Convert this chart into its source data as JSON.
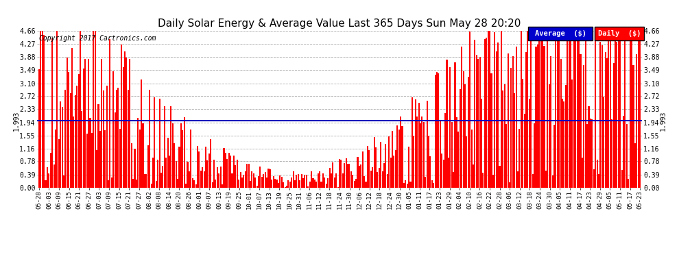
{
  "title": "Daily Solar Energy & Average Value Last 365 Days Sun May 28 20:20",
  "average_value": 1.993,
  "y_max": 4.66,
  "y_ticks": [
    0.0,
    0.39,
    0.78,
    1.16,
    1.55,
    1.94,
    2.33,
    2.72,
    3.1,
    3.49,
    3.88,
    4.27,
    4.66
  ],
  "bar_color": "#FF0000",
  "average_line_color": "#0000BB",
  "background_color": "#FFFFFF",
  "grid_color": "#AAAAAA",
  "copyright_text": "Copyright 2017 Cartronics.com",
  "legend_avg_label": "Average  ($)",
  "legend_daily_label": "Daily  ($)",
  "legend_avg_bg": "#0000CC",
  "legend_daily_bg": "#FF0000",
  "x_labels": [
    "05-28",
    "06-03",
    "06-09",
    "06-15",
    "06-21",
    "06-27",
    "07-03",
    "07-09",
    "07-15",
    "07-21",
    "07-27",
    "08-02",
    "08-08",
    "08-14",
    "08-20",
    "08-26",
    "09-01",
    "09-07",
    "09-13",
    "09-19",
    "09-25",
    "10-01",
    "10-07",
    "10-13",
    "10-19",
    "10-25",
    "10-31",
    "11-06",
    "11-12",
    "11-18",
    "11-24",
    "11-30",
    "12-06",
    "12-12",
    "12-18",
    "12-24",
    "12-30",
    "01-05",
    "01-11",
    "01-17",
    "01-23",
    "01-29",
    "02-04",
    "02-10",
    "02-16",
    "02-22",
    "02-28",
    "03-06",
    "03-12",
    "03-18",
    "03-24",
    "03-30",
    "04-05",
    "04-11",
    "04-17",
    "04-23",
    "04-29",
    "05-05",
    "05-11",
    "05-17",
    "05-23"
  ],
  "num_bars": 365,
  "seed": 42
}
